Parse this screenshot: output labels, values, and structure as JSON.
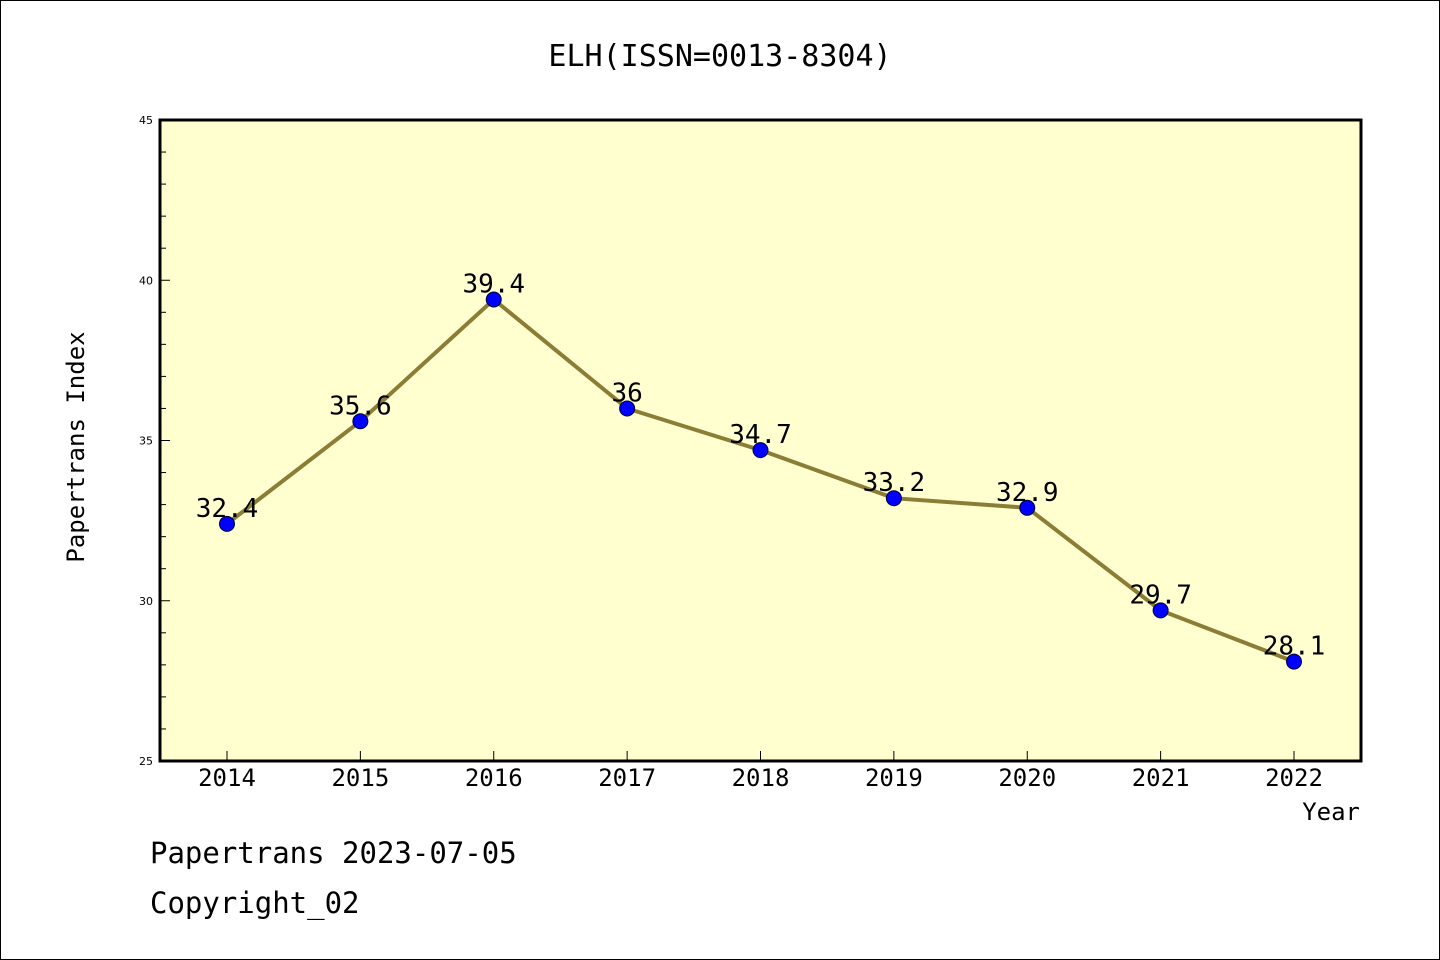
{
  "chart_data": {
    "type": "line",
    "title": "ELH(ISSN=0013-8304)",
    "xlabel": "Year",
    "ylabel": "Papertrans Index",
    "categories": [
      "2014",
      "2015",
      "2016",
      "2017",
      "2018",
      "2019",
      "2020",
      "2021",
      "2022"
    ],
    "values": [
      32.4,
      35.6,
      39.4,
      36,
      34.7,
      33.2,
      32.9,
      29.7,
      28.1
    ],
    "data_labels": [
      "32.4",
      "35.6",
      "39.4",
      "36",
      "34.7",
      "33.2",
      "32.9",
      "29.7",
      "28.1"
    ],
    "ylim": [
      25,
      45
    ],
    "yticks": [
      25,
      30,
      35,
      40,
      45
    ],
    "grid": false,
    "plot_background": "#ffffd0",
    "line_color": "#8b7d35",
    "marker_color": "#0000ff"
  },
  "footer": {
    "source": "Papertrans 2023-07-05",
    "copyright": "Copyright_02"
  }
}
